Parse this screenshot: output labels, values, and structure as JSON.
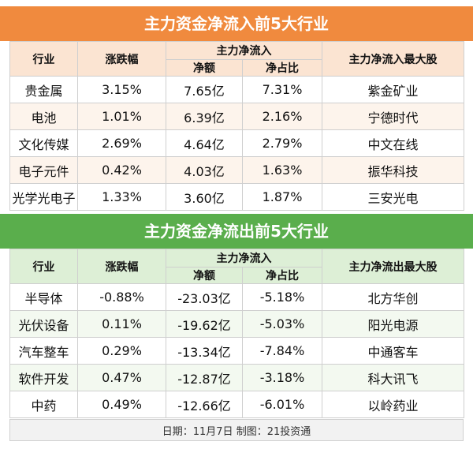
{
  "inflow": {
    "title": "主力资金净流入前5大行业",
    "headers": {
      "industry": "行业",
      "change": "涨跌幅",
      "net_main": "主力净流入",
      "net_amount": "净额",
      "net_ratio": "净占比",
      "top_stock": "主力净流入最大股"
    },
    "rows": [
      {
        "industry": "贵金属",
        "change": "3.15%",
        "amount": "7.65亿",
        "ratio": "7.31%",
        "stock": "紫金矿业"
      },
      {
        "industry": "电池",
        "change": "1.01%",
        "amount": "6.39亿",
        "ratio": "2.16%",
        "stock": "宁德时代"
      },
      {
        "industry": "文化传媒",
        "change": "2.69%",
        "amount": "4.64亿",
        "ratio": "2.79%",
        "stock": "中文在线"
      },
      {
        "industry": "电子元件",
        "change": "0.42%",
        "amount": "4.03亿",
        "ratio": "1.63%",
        "stock": "振华科技"
      },
      {
        "industry": "光学光电子",
        "change": "1.33%",
        "amount": "3.60亿",
        "ratio": "1.87%",
        "stock": "三安光电"
      }
    ]
  },
  "outflow": {
    "title": "主力资金净流出前5大行业",
    "headers": {
      "industry": "行业",
      "change": "涨跌幅",
      "net_main": "主力净流入",
      "net_amount": "净额",
      "net_ratio": "净占比",
      "top_stock": "主力净流出最大股"
    },
    "rows": [
      {
        "industry": "半导体",
        "change": "-0.88%",
        "amount": "-23.03亿",
        "ratio": "-5.18%",
        "stock": "北方华创"
      },
      {
        "industry": "光伏设备",
        "change": "0.11%",
        "amount": "-19.62亿",
        "ratio": "-5.03%",
        "stock": "阳光电源"
      },
      {
        "industry": "汽车整车",
        "change": "0.29%",
        "amount": "-13.34亿",
        "ratio": "-7.84%",
        "stock": "中通客车"
      },
      {
        "industry": "软件开发",
        "change": "0.47%",
        "amount": "-12.87亿",
        "ratio": "-3.18%",
        "stock": "科大讯飞"
      },
      {
        "industry": "中药",
        "change": "0.49%",
        "amount": "-12.66亿",
        "ratio": "-6.01%",
        "stock": "以岭药业"
      }
    ]
  },
  "footer": {
    "date": "日期：11月7日",
    "credit": "制图：21投资通"
  },
  "colors": {
    "inflow_banner": "#F08A3E",
    "outflow_banner": "#5AAE4C",
    "inflow_header_bg": "#FBE4D2",
    "outflow_header_bg": "#DDEFD6"
  }
}
